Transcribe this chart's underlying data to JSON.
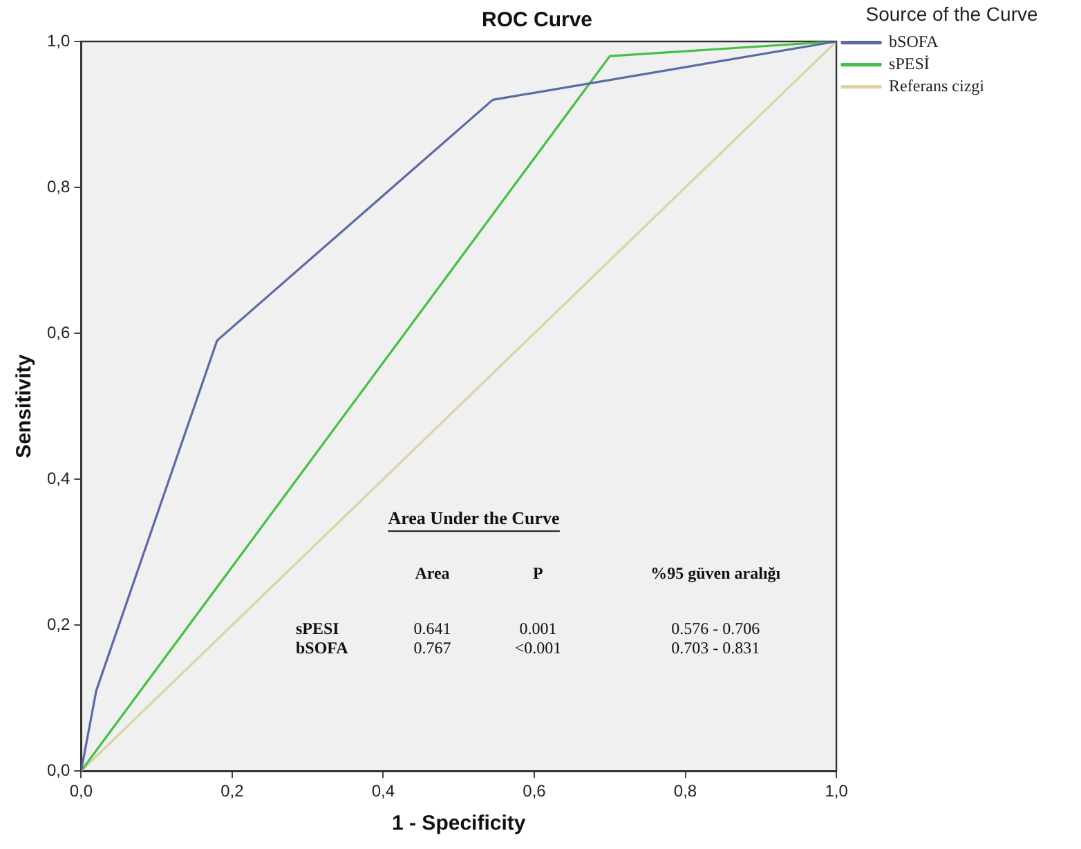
{
  "chart_data": {
    "type": "line",
    "title": "ROC Curve",
    "xlabel": "1 - Specificity",
    "ylabel": "Sensitivity",
    "legend_title": "Source of the Curve",
    "legend": "right",
    "marker": "none",
    "grid": false,
    "xlim": [
      0,
      1
    ],
    "ylim": [
      0,
      1
    ],
    "xticks": [
      {
        "value": 0,
        "label": "0,0"
      },
      {
        "value": 0.2,
        "label": "0,2"
      },
      {
        "value": 0.4,
        "label": "0,4"
      },
      {
        "value": 0.6,
        "label": "0,6"
      },
      {
        "value": 0.8,
        "label": "0,8"
      },
      {
        "value": 1,
        "label": "1,0"
      }
    ],
    "yticks": [
      {
        "value": 0,
        "label": "0,0"
      },
      {
        "value": 0.2,
        "label": "0,2"
      },
      {
        "value": 0.4,
        "label": "0,4"
      },
      {
        "value": 0.6,
        "label": "0,6"
      },
      {
        "value": 0.8,
        "label": "0,8"
      },
      {
        "value": 1,
        "label": "1,0"
      }
    ],
    "series": [
      {
        "name": "bSOFA",
        "color": "#5b6aa6",
        "x": [
          0,
          0.02,
          0.18,
          0.545,
          1
        ],
        "values": [
          0,
          0.11,
          0.59,
          0.92,
          1
        ]
      },
      {
        "name": "sPESİ",
        "color": "#44c044",
        "x": [
          0,
          0.7,
          1
        ],
        "values": [
          0,
          0.98,
          1
        ]
      },
      {
        "name": "Referans cizgi",
        "color": "#d9d3a6",
        "x": [
          0,
          1
        ],
        "values": [
          0,
          1
        ]
      }
    ],
    "annotations": [
      "Area Under the Curve",
      "\tArea\tP\t%95 güven aralığı",
      "sPESI\t0.641\t0.001\t0.576 - 0.706",
      "bSOFA\t0.767\t<0.001\t0.703 - 0.831"
    ]
  }
}
